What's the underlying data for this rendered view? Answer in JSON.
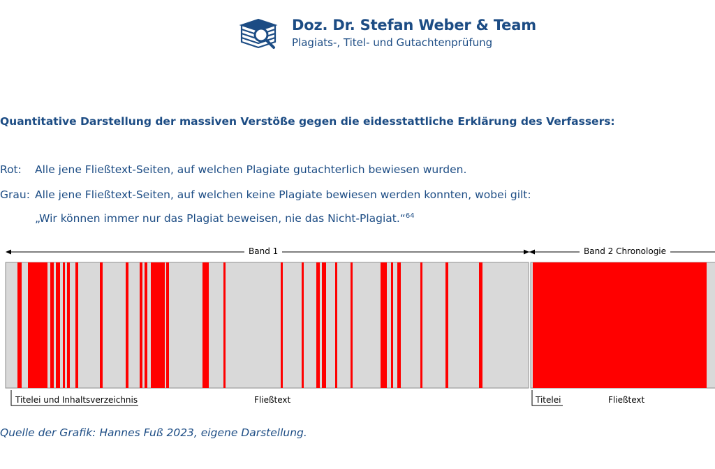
{
  "header": {
    "title": "Doz. Dr. Stefan Weber & Team",
    "subtitle": "Plagiats-, Titel- und Gutachtenprüfung",
    "logo_icon": "book-magnifier-icon"
  },
  "heading": "Quantitative Darstellung der massiven Verstöße gegen die eidesstattliche Erklärung des Verfassers:",
  "legend": {
    "rot_key": "Rot:",
    "rot_text": "Alle jene Fließtext-Seiten, auf welchen Plagiate gutachterlich bewiesen wurden.",
    "grau_key": "Grau:",
    "grau_text": "Alle jene Fließtext-Seiten, auf welchen keine Plagiate bewiesen werden konnten, wobei gilt:",
    "quote": "„Wir können immer nur das Plagiat beweisen, nie das Nicht-Plagiat.“",
    "footnote": "64"
  },
  "colors": {
    "plagiarism": "#ff0000",
    "no_plagiarism": "#d9d9d9",
    "text": "#1c4c84"
  },
  "chart": {
    "band1_label": "Band 1",
    "band2_label": "Band 2 Chronologie",
    "band1_sections": {
      "front_label": "Titelei und Inhaltsverzeichnis",
      "body_label": "Fließtext"
    },
    "band2_sections": {
      "front_label": "Titelei",
      "body_label": "Fließtext"
    }
  },
  "source": "Quelle der Grafik: Hannes Fuß 2023, eigene Darstellung."
}
